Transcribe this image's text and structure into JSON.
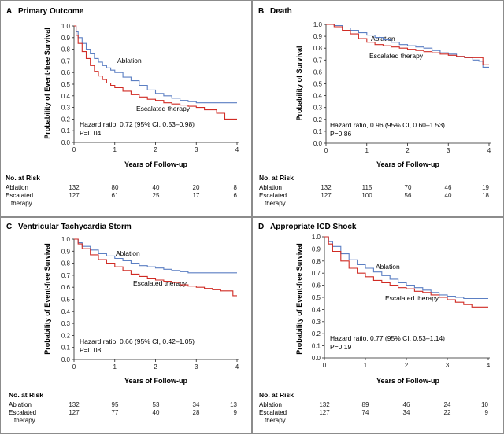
{
  "figure": {
    "colors": {
      "ablation": "#5b7fc3",
      "escalated": "#d02b24",
      "axis": "#222222"
    }
  },
  "chart_data": [
    {
      "type": "line",
      "panel_letter": "A",
      "title": "Primary Outcome",
      "xlabel": "Years of Follow-up",
      "ylabel": "Probability of Event-free Survival",
      "xlim": [
        0,
        4
      ],
      "ylim": [
        0,
        1.0
      ],
      "xticks": [
        "0",
        "1",
        "2",
        "3",
        "4"
      ],
      "yticks": [
        "0.0",
        "0.1",
        "0.2",
        "0.3",
        "0.4",
        "0.5",
        "0.6",
        "0.7",
        "0.8",
        "0.9",
        "1.0"
      ],
      "series": [
        {
          "name": "Ablation",
          "key": "ablation",
          "points": [
            [
              0,
              1
            ],
            [
              0.05,
              0.95
            ],
            [
              0.1,
              0.9
            ],
            [
              0.2,
              0.85
            ],
            [
              0.3,
              0.8
            ],
            [
              0.4,
              0.76
            ],
            [
              0.5,
              0.72
            ],
            [
              0.6,
              0.69
            ],
            [
              0.7,
              0.66
            ],
            [
              0.8,
              0.64
            ],
            [
              0.9,
              0.62
            ],
            [
              1,
              0.6
            ],
            [
              1.2,
              0.56
            ],
            [
              1.4,
              0.53
            ],
            [
              1.6,
              0.49
            ],
            [
              1.8,
              0.45
            ],
            [
              2,
              0.42
            ],
            [
              2.2,
              0.4
            ],
            [
              2.4,
              0.38
            ],
            [
              2.6,
              0.36
            ],
            [
              2.8,
              0.35
            ],
            [
              3,
              0.34
            ],
            [
              4,
              0.34
            ]
          ]
        },
        {
          "name": "Escalated therapy",
          "key": "escalated",
          "points": [
            [
              0,
              1
            ],
            [
              0.05,
              0.92
            ],
            [
              0.1,
              0.85
            ],
            [
              0.2,
              0.78
            ],
            [
              0.3,
              0.72
            ],
            [
              0.4,
              0.66
            ],
            [
              0.5,
              0.61
            ],
            [
              0.6,
              0.57
            ],
            [
              0.7,
              0.54
            ],
            [
              0.8,
              0.51
            ],
            [
              0.9,
              0.49
            ],
            [
              1,
              0.47
            ],
            [
              1.2,
              0.44
            ],
            [
              1.4,
              0.41
            ],
            [
              1.6,
              0.39
            ],
            [
              1.8,
              0.37
            ],
            [
              2,
              0.36
            ],
            [
              2.2,
              0.34
            ],
            [
              2.4,
              0.33
            ],
            [
              2.6,
              0.32
            ],
            [
              2.8,
              0.31
            ],
            [
              3,
              0.3
            ],
            [
              3.2,
              0.28
            ],
            [
              3.5,
              0.25
            ],
            [
              3.7,
              0.2
            ],
            [
              4,
              0.2
            ]
          ]
        }
      ],
      "series_labels": {
        "ablation": "Ablation",
        "escalated": "Escalated therapy"
      },
      "hazard_ratio": "Hazard ratio, 0.72 (95% CI, 0.53–0.98)",
      "p_value": "P=0.04",
      "risk_table": {
        "header": "No. at Risk",
        "rows": [
          {
            "label": "Ablation",
            "label2": "",
            "values": [
              "132",
              "80",
              "40",
              "20",
              "8"
            ]
          },
          {
            "label": "Escalated",
            "label2": "therapy",
            "values": [
              "127",
              "61",
              "25",
              "17",
              "6"
            ]
          }
        ]
      }
    },
    {
      "type": "line",
      "panel_letter": "B",
      "title": "Death",
      "xlabel": "Years of Follow-up",
      "ylabel": "Probability of Survival",
      "xlim": [
        0,
        4
      ],
      "ylim": [
        0,
        1.0
      ],
      "xticks": [
        "0",
        "1",
        "2",
        "3",
        "4"
      ],
      "yticks": [
        "0.0",
        "0.1",
        "0.2",
        "0.3",
        "0.4",
        "0.5",
        "0.6",
        "0.7",
        "0.8",
        "0.9",
        "1.0"
      ],
      "series": [
        {
          "name": "Ablation",
          "key": "ablation",
          "points": [
            [
              0,
              1
            ],
            [
              0.2,
              0.99
            ],
            [
              0.4,
              0.97
            ],
            [
              0.6,
              0.95
            ],
            [
              0.8,
              0.93
            ],
            [
              1,
              0.91
            ],
            [
              1.2,
              0.89
            ],
            [
              1.4,
              0.87
            ],
            [
              1.6,
              0.85
            ],
            [
              1.8,
              0.83
            ],
            [
              2,
              0.82
            ],
            [
              2.2,
              0.81
            ],
            [
              2.4,
              0.8
            ],
            [
              2.6,
              0.78
            ],
            [
              2.8,
              0.76
            ],
            [
              3,
              0.75
            ],
            [
              3.2,
              0.73
            ],
            [
              3.4,
              0.72
            ],
            [
              3.6,
              0.7
            ],
            [
              3.75,
              0.69
            ],
            [
              3.85,
              0.64
            ],
            [
              4,
              0.64
            ]
          ]
        },
        {
          "name": "Escalated therapy",
          "key": "escalated",
          "points": [
            [
              0,
              1
            ],
            [
              0.2,
              0.98
            ],
            [
              0.4,
              0.95
            ],
            [
              0.6,
              0.92
            ],
            [
              0.8,
              0.88
            ],
            [
              1,
              0.85
            ],
            [
              1.2,
              0.83
            ],
            [
              1.4,
              0.82
            ],
            [
              1.6,
              0.81
            ],
            [
              1.8,
              0.8
            ],
            [
              2,
              0.79
            ],
            [
              2.2,
              0.78
            ],
            [
              2.4,
              0.77
            ],
            [
              2.6,
              0.76
            ],
            [
              2.8,
              0.75
            ],
            [
              3,
              0.74
            ],
            [
              3.2,
              0.73
            ],
            [
              3.4,
              0.72
            ],
            [
              3.6,
              0.72
            ],
            [
              3.8,
              0.72
            ],
            [
              3.85,
              0.66
            ],
            [
              4,
              0.66
            ]
          ]
        }
      ],
      "series_labels": {
        "ablation": "Ablation",
        "escalated": "Escalated therapy"
      },
      "hazard_ratio": "Hazard ratio, 0.96 (95% CI, 0.60–1.53)",
      "p_value": "P=0.86",
      "risk_table": {
        "header": "No. at Risk",
        "rows": [
          {
            "label": "Ablation",
            "label2": "",
            "values": [
              "132",
              "115",
              "70",
              "46",
              "19"
            ]
          },
          {
            "label": "Escalated",
            "label2": "therapy",
            "values": [
              "127",
              "100",
              "56",
              "40",
              "18"
            ]
          }
        ]
      }
    },
    {
      "type": "line",
      "panel_letter": "C",
      "title": "Ventricular Tachycardia Storm",
      "xlabel": "Years of Follow-up",
      "ylabel": "Probability of Event-free Survival",
      "xlim": [
        0,
        4
      ],
      "ylim": [
        0,
        1.0
      ],
      "xticks": [
        "0",
        "1",
        "2",
        "3",
        "4"
      ],
      "yticks": [
        "0.0",
        "0.1",
        "0.2",
        "0.3",
        "0.4",
        "0.5",
        "0.6",
        "0.7",
        "0.8",
        "0.9",
        "1.0"
      ],
      "series": [
        {
          "name": "Ablation",
          "key": "ablation",
          "points": [
            [
              0,
              1
            ],
            [
              0.1,
              0.97
            ],
            [
              0.2,
              0.94
            ],
            [
              0.4,
              0.91
            ],
            [
              0.6,
              0.88
            ],
            [
              0.8,
              0.86
            ],
            [
              1,
              0.84
            ],
            [
              1.2,
              0.82
            ],
            [
              1.4,
              0.8
            ],
            [
              1.6,
              0.78
            ],
            [
              1.8,
              0.77
            ],
            [
              2,
              0.76
            ],
            [
              2.2,
              0.75
            ],
            [
              2.4,
              0.74
            ],
            [
              2.6,
              0.73
            ],
            [
              2.8,
              0.72
            ],
            [
              3,
              0.72
            ],
            [
              4,
              0.72
            ]
          ]
        },
        {
          "name": "Escalated therapy",
          "key": "escalated",
          "points": [
            [
              0,
              1
            ],
            [
              0.1,
              0.96
            ],
            [
              0.2,
              0.92
            ],
            [
              0.4,
              0.87
            ],
            [
              0.6,
              0.83
            ],
            [
              0.8,
              0.8
            ],
            [
              1,
              0.77
            ],
            [
              1.2,
              0.74
            ],
            [
              1.4,
              0.71
            ],
            [
              1.6,
              0.69
            ],
            [
              1.8,
              0.67
            ],
            [
              2,
              0.66
            ],
            [
              2.2,
              0.65
            ],
            [
              2.4,
              0.64
            ],
            [
              2.6,
              0.62
            ],
            [
              2.8,
              0.61
            ],
            [
              3,
              0.6
            ],
            [
              3.2,
              0.59
            ],
            [
              3.4,
              0.58
            ],
            [
              3.6,
              0.57
            ],
            [
              3.8,
              0.57
            ],
            [
              3.9,
              0.53
            ],
            [
              4,
              0.53
            ]
          ]
        }
      ],
      "series_labels": {
        "ablation": "Ablation",
        "escalated": "Escalated therapy"
      },
      "hazard_ratio": "Hazard ratio, 0.66 (95% CI, 0.42–1.05)",
      "p_value": "P=0.08",
      "risk_table": {
        "header": "No. at Risk",
        "rows": [
          {
            "label": "Ablation",
            "label2": "",
            "values": [
              "132",
              "95",
              "53",
              "34",
              "13"
            ]
          },
          {
            "label": "Escalated",
            "label2": "therapy",
            "values": [
              "127",
              "77",
              "40",
              "28",
              "9"
            ]
          }
        ]
      }
    },
    {
      "type": "line",
      "panel_letter": "D",
      "title": "Appropriate ICD Shock",
      "xlabel": "Years of Follow-up",
      "ylabel": "Probability of Event-free Survival",
      "xlim": [
        0,
        4
      ],
      "ylim": [
        0,
        1.0
      ],
      "xticks": [
        "0",
        "1",
        "2",
        "3",
        "4"
      ],
      "yticks": [
        "0.0",
        "0.1",
        "0.2",
        "0.3",
        "0.4",
        "0.5",
        "0.6",
        "0.7",
        "0.8",
        "0.9",
        "1.0"
      ],
      "series": [
        {
          "name": "Ablation",
          "key": "ablation",
          "points": [
            [
              0,
              1
            ],
            [
              0.1,
              0.96
            ],
            [
              0.2,
              0.92
            ],
            [
              0.4,
              0.86
            ],
            [
              0.6,
              0.81
            ],
            [
              0.8,
              0.77
            ],
            [
              1,
              0.74
            ],
            [
              1.2,
              0.71
            ],
            [
              1.4,
              0.68
            ],
            [
              1.6,
              0.65
            ],
            [
              1.8,
              0.62
            ],
            [
              2,
              0.6
            ],
            [
              2.2,
              0.58
            ],
            [
              2.4,
              0.56
            ],
            [
              2.6,
              0.54
            ],
            [
              2.8,
              0.52
            ],
            [
              3,
              0.51
            ],
            [
              3.2,
              0.5
            ],
            [
              3.4,
              0.49
            ],
            [
              3.6,
              0.49
            ],
            [
              4,
              0.49
            ]
          ]
        },
        {
          "name": "Escalated therapy",
          "key": "escalated",
          "points": [
            [
              0,
              1
            ],
            [
              0.1,
              0.94
            ],
            [
              0.2,
              0.88
            ],
            [
              0.4,
              0.8
            ],
            [
              0.6,
              0.74
            ],
            [
              0.8,
              0.7
            ],
            [
              1,
              0.67
            ],
            [
              1.2,
              0.64
            ],
            [
              1.4,
              0.62
            ],
            [
              1.6,
              0.6
            ],
            [
              1.8,
              0.58
            ],
            [
              2,
              0.57
            ],
            [
              2.2,
              0.55
            ],
            [
              2.4,
              0.54
            ],
            [
              2.6,
              0.52
            ],
            [
              2.8,
              0.5
            ],
            [
              3,
              0.48
            ],
            [
              3.2,
              0.46
            ],
            [
              3.4,
              0.44
            ],
            [
              3.6,
              0.42
            ],
            [
              4,
              0.42
            ]
          ]
        }
      ],
      "series_labels": {
        "ablation": "Ablation",
        "escalated": "Escalated therapy"
      },
      "hazard_ratio": "Hazard ratio, 0.77 (95% CI, 0.53–1.14)",
      "p_value": "P=0.19",
      "risk_table": {
        "header": "No. at Risk",
        "rows": [
          {
            "label": "Ablation",
            "label2": "",
            "values": [
              "132",
              "89",
              "46",
              "24",
              "10"
            ]
          },
          {
            "label": "Escalated",
            "label2": "therapy",
            "values": [
              "127",
              "74",
              "34",
              "22",
              "9"
            ]
          }
        ]
      }
    }
  ]
}
